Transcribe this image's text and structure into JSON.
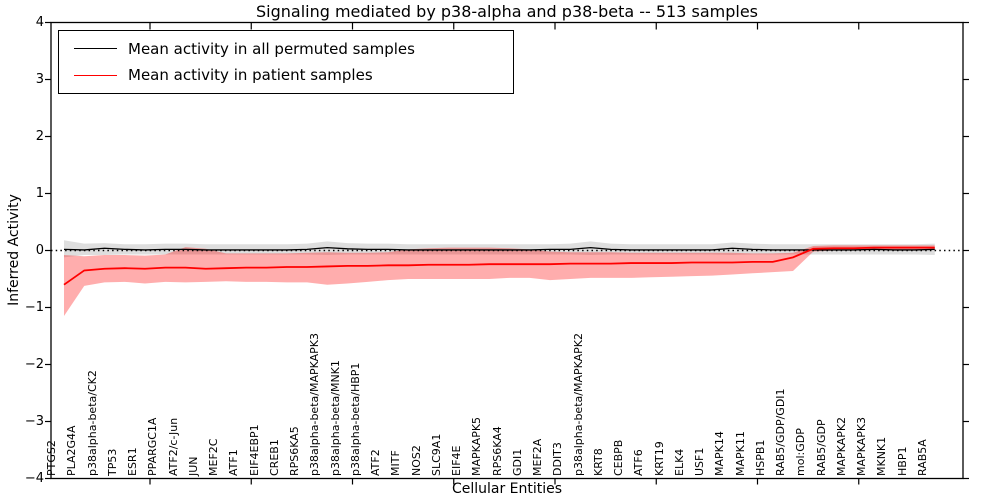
{
  "chart_data": {
    "type": "line",
    "title": "Signaling mediated by p38-alpha and p38-beta -- 513 samples",
    "xlabel": "Cellular Entities",
    "ylabel": "Inferred Activity",
    "ylim": [
      -4,
      4
    ],
    "yticks": [
      -4,
      -3,
      -2,
      -1,
      0,
      1,
      2,
      3,
      4
    ],
    "grid": false,
    "legend_position": "upper left",
    "zero_line": {
      "value": 0,
      "style": "dotted",
      "color": "#000000"
    },
    "categories": [
      "PTGS2",
      "PLA2G4A",
      "p38alpha-beta/CK2",
      "TP53",
      "ESR1",
      "PPARGC1A",
      "ATF2/c-Jun",
      "JUN",
      "MEF2C",
      "ATF1",
      "EIF4EBP1",
      "CREB1",
      "RPS6KA5",
      "p38alpha-beta/MAPKAPK3",
      "p38alpha-beta/MNK1",
      "p38alpha-beta/HBP1",
      "ATF2",
      "MITF",
      "NOS2",
      "SLC9A1",
      "EIF4E",
      "MAPKAPK5",
      "RPS6KA4",
      "GDI1",
      "MEF2A",
      "DDIT3",
      "p38alpha-beta/MAPKAPK2",
      "KRT8",
      "CEBPB",
      "ATF6",
      "KRT19",
      "ELK4",
      "USF1",
      "MAPK14",
      "MAPK11",
      "HSPB1",
      "RAB5/GDP/GDI1",
      "mol:GDP",
      "RAB5/GDP",
      "MAPKAPK2",
      "MAPKAPK3",
      "MKNK1",
      "HBP1",
      "RAB5A"
    ],
    "series": [
      {
        "name": "Mean activity in all permuted samples",
        "color": "#000000",
        "band_color": "rgba(0,0,0,0.13)",
        "values": [
          0.02,
          0.01,
          0.04,
          0.02,
          0.01,
          0.02,
          0.02,
          0.01,
          0.01,
          0.01,
          0.01,
          0.01,
          0.02,
          0.05,
          0.03,
          0.02,
          0.02,
          0.01,
          0.01,
          0.01,
          0.01,
          0.01,
          0.01,
          0.01,
          0.02,
          0.02,
          0.05,
          0.02,
          0.01,
          0.01,
          0.01,
          0.01,
          0.01,
          0.04,
          0.02,
          0.01,
          0.01,
          0.01,
          0.01,
          0.01,
          0.02,
          0.01,
          0.01,
          0.02
        ],
        "band_upper": [
          0.18,
          0.12,
          0.13,
          0.11,
          0.11,
          0.12,
          0.12,
          0.11,
          0.11,
          0.11,
          0.11,
          0.11,
          0.12,
          0.16,
          0.13,
          0.12,
          0.12,
          0.11,
          0.11,
          0.11,
          0.11,
          0.11,
          0.11,
          0.11,
          0.11,
          0.12,
          0.16,
          0.12,
          0.11,
          0.11,
          0.11,
          0.11,
          0.11,
          0.14,
          0.12,
          0.11,
          0.11,
          0.11,
          0.11,
          0.11,
          0.11,
          0.11,
          0.11,
          0.12
        ],
        "band_lower": [
          -0.12,
          -0.08,
          -0.08,
          -0.07,
          -0.07,
          -0.07,
          -0.07,
          -0.07,
          -0.07,
          -0.07,
          -0.07,
          -0.07,
          -0.07,
          -0.08,
          -0.07,
          -0.07,
          -0.07,
          -0.07,
          -0.07,
          -0.07,
          -0.07,
          -0.07,
          -0.07,
          -0.07,
          -0.07,
          -0.07,
          -0.08,
          -0.07,
          -0.07,
          -0.07,
          -0.07,
          -0.07,
          -0.07,
          -0.08,
          -0.07,
          -0.07,
          -0.07,
          -0.07,
          -0.07,
          -0.07,
          -0.07,
          -0.07,
          -0.07,
          -0.08
        ]
      },
      {
        "name": "Mean activity in patient samples",
        "color": "#ff0000",
        "band_color": "rgba(255,0,0,0.32)",
        "values": [
          -0.6,
          -0.35,
          -0.32,
          -0.31,
          -0.32,
          -0.3,
          -0.3,
          -0.32,
          -0.31,
          -0.3,
          -0.3,
          -0.29,
          -0.29,
          -0.28,
          -0.27,
          -0.27,
          -0.26,
          -0.26,
          -0.25,
          -0.25,
          -0.25,
          -0.24,
          -0.24,
          -0.24,
          -0.24,
          -0.23,
          -0.23,
          -0.23,
          -0.22,
          -0.22,
          -0.22,
          -0.21,
          -0.21,
          -0.21,
          -0.2,
          -0.2,
          -0.12,
          0.03,
          0.04,
          0.04,
          0.05,
          0.05,
          0.05,
          0.05
        ],
        "band_upper": [
          -0.08,
          -0.1,
          -0.08,
          -0.08,
          -0.09,
          -0.07,
          0.06,
          0.03,
          -0.05,
          -0.05,
          -0.05,
          -0.05,
          -0.04,
          -0.03,
          -0.04,
          -0.04,
          -0.03,
          0.02,
          0.04,
          0.05,
          0.05,
          0.05,
          0.04,
          0.02,
          -0.02,
          -0.03,
          -0.03,
          -0.03,
          -0.04,
          -0.04,
          -0.04,
          -0.04,
          -0.04,
          -0.04,
          -0.05,
          -0.05,
          -0.04,
          0.08,
          0.09,
          0.09,
          0.09,
          0.09,
          0.09,
          0.09
        ],
        "band_lower": [
          -1.15,
          -0.62,
          -0.56,
          -0.55,
          -0.58,
          -0.55,
          -0.56,
          -0.55,
          -0.54,
          -0.55,
          -0.55,
          -0.56,
          -0.56,
          -0.6,
          -0.58,
          -0.55,
          -0.52,
          -0.5,
          -0.5,
          -0.5,
          -0.5,
          -0.5,
          -0.48,
          -0.48,
          -0.52,
          -0.5,
          -0.48,
          -0.48,
          -0.48,
          -0.47,
          -0.46,
          -0.45,
          -0.44,
          -0.42,
          -0.4,
          -0.38,
          -0.36,
          -0.02,
          0.0,
          0.0,
          0.01,
          0.01,
          0.01,
          0.01
        ]
      }
    ]
  }
}
